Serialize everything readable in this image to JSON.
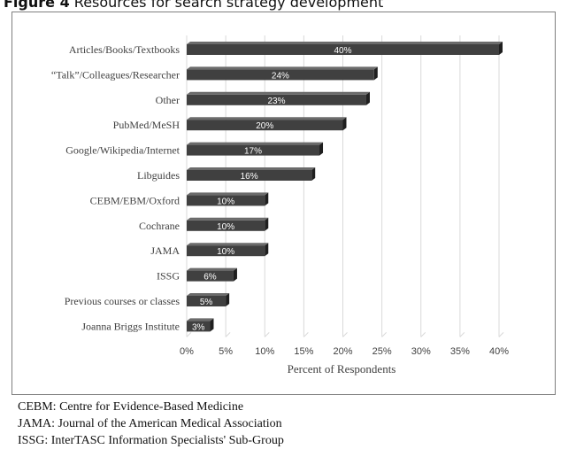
{
  "figure": {
    "label": "Figure 4",
    "title": "Resources for search strategy development"
  },
  "chart_data": {
    "type": "bar",
    "orientation": "horizontal",
    "categories": [
      "Articles/Books/Textbooks",
      "“Talk”/Colleagues/Researcher",
      "Other",
      "PubMed/MeSH",
      "Google/Wikipedia/Internet",
      "Libguides",
      "CEBM/EBM/Oxford",
      "Cochrane",
      "JAMA",
      "ISSG",
      "Previous courses or classes",
      "Joanna Briggs Institute"
    ],
    "values": [
      40,
      24,
      23,
      20,
      17,
      16,
      10,
      10,
      10,
      6,
      5,
      3
    ],
    "data_labels": [
      "40%",
      "24%",
      "23%",
      "20%",
      "17%",
      "16%",
      "10%",
      "10%",
      "10%",
      "6%",
      "5%",
      "3%"
    ],
    "xlim": [
      0,
      40
    ],
    "x_ticks": [
      "0%",
      "5%",
      "10%",
      "15%",
      "20%",
      "25%",
      "30%",
      "35%",
      "40%"
    ],
    "xlabel": "Percent of Respondents",
    "ylabel": "",
    "grid": true,
    "bar_color": "#404040"
  },
  "notes": [
    "CEBM: Centre for Evidence-Based Medicine",
    "JAMA: Journal of the American Medical Association",
    "ISSG: InterTASC Information Specialists' Sub-Group"
  ]
}
